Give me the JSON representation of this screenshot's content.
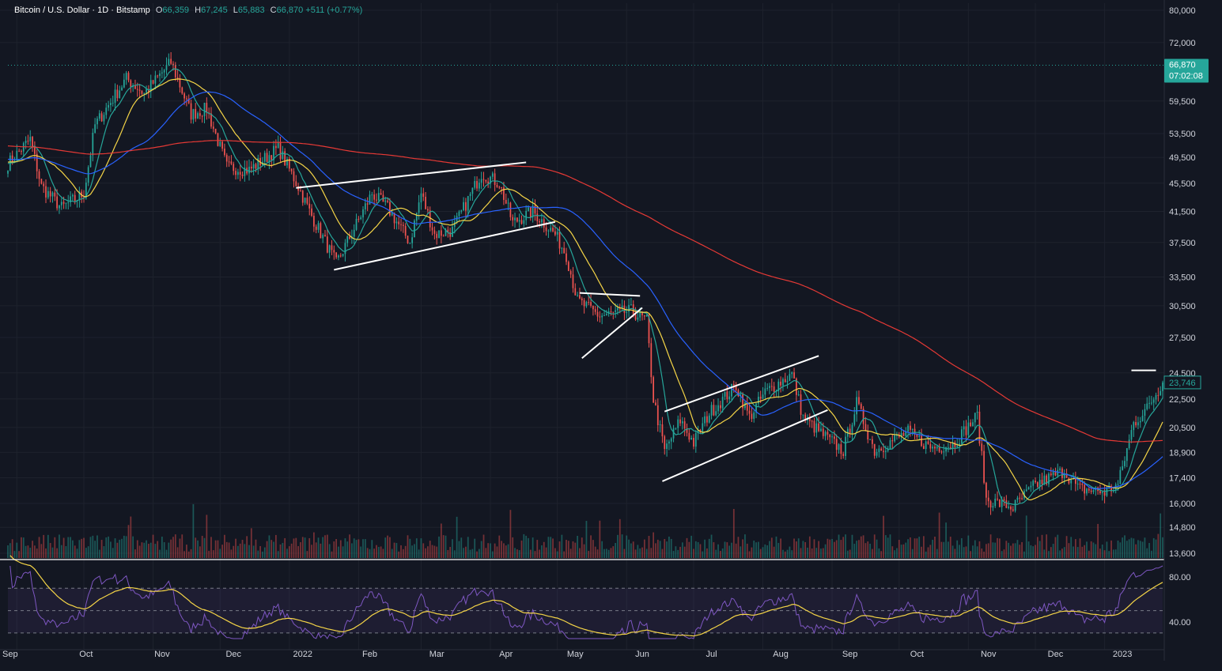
{
  "header": {
    "symbol": "Bitcoin / U.S. Dollar · 1D · Bitstamp",
    "o_label": "O",
    "o": "66,359",
    "h_label": "H",
    "h": "67,245",
    "l_label": "L",
    "l": "65,883",
    "c_label": "C",
    "c": "66,870",
    "change": "+511 (+0.77%)"
  },
  "price_badge": {
    "price": "66,870",
    "countdown": "07:02:08"
  },
  "last_value_tag": "23,746",
  "colors": {
    "background": "#131722",
    "up": "#26a69a",
    "down": "#ef5350",
    "ema_fast": "#26a69a",
    "ema_mid": "#f5d547",
    "ma_blue": "#2962ff",
    "ma_red": "#e53935",
    "rsi": "#7e57c2",
    "rsi_ma": "#f5d547",
    "trendline": "#ffffff",
    "badge": "#26a69a"
  },
  "chart_data": {
    "type": "candlestick",
    "price_ticks": [
      80000,
      72000,
      59500,
      53500,
      49500,
      45500,
      41500,
      37500,
      33500,
      30500,
      27500,
      24500,
      22500,
      20500,
      18900,
      17400,
      16000,
      14800,
      13600
    ],
    "price_tick_labels": [
      "80,000",
      "72,000",
      "59,500",
      "53,500",
      "49,500",
      "45,500",
      "41,500",
      "37,500",
      "33,500",
      "30,500",
      "27,500",
      "24,500",
      "22,500",
      "20,500",
      "18,900",
      "17,400",
      "16,000",
      "14,800",
      "13,600"
    ],
    "price_scale": "log",
    "x_labels": [
      "Sep",
      "Oct",
      "Nov",
      "Dec",
      "2022",
      "Feb",
      "Mar",
      "Apr",
      "May",
      "Jun",
      "Jul",
      "Aug",
      "Sep",
      "Oct",
      "Nov",
      "Dec",
      "2023"
    ],
    "x_range": [
      "2021-08-28",
      "2023-01-27"
    ],
    "price_path": [
      [
        "2021-08-28",
        48500
      ],
      [
        "2021-09-07",
        52500
      ],
      [
        "2021-09-12",
        45000
      ],
      [
        "2021-09-21",
        42000
      ],
      [
        "2021-10-01",
        44000
      ],
      [
        "2021-10-06",
        55000
      ],
      [
        "2021-10-20",
        64000
      ],
      [
        "2021-10-28",
        61000
      ],
      [
        "2021-11-09",
        67500
      ],
      [
        "2021-11-18",
        57000
      ],
      [
        "2021-11-25",
        58000
      ],
      [
        "2021-12-04",
        48000
      ],
      [
        "2021-12-14",
        47500
      ],
      [
        "2021-12-27",
        51000
      ],
      [
        "2022-01-05",
        45000
      ],
      [
        "2022-01-10",
        41500
      ],
      [
        "2022-01-22",
        35000
      ],
      [
        "2022-02-07",
        44000
      ],
      [
        "2022-02-14",
        42000
      ],
      [
        "2022-02-24",
        37500
      ],
      [
        "2022-03-01",
        44000
      ],
      [
        "2022-03-07",
        38500
      ],
      [
        "2022-03-15",
        39000
      ],
      [
        "2022-03-28",
        47000
      ],
      [
        "2022-04-05",
        45500
      ],
      [
        "2022-04-11",
        40000
      ],
      [
        "2022-04-20",
        41500
      ],
      [
        "2022-04-30",
        38500
      ],
      [
        "2022-05-05",
        36000
      ],
      [
        "2022-05-10",
        31000
      ],
      [
        "2022-05-20",
        29500
      ],
      [
        "2022-06-03",
        30000
      ],
      [
        "2022-06-10",
        29000
      ],
      [
        "2022-06-13",
        22500
      ],
      [
        "2022-06-18",
        19000
      ],
      [
        "2022-06-25",
        21000
      ],
      [
        "2022-07-01",
        19500
      ],
      [
        "2022-07-08",
        21500
      ],
      [
        "2022-07-20",
        23500
      ],
      [
        "2022-07-26",
        21200
      ],
      [
        "2022-08-02",
        23000
      ],
      [
        "2022-08-14",
        24400
      ],
      [
        "2022-08-19",
        21200
      ],
      [
        "2022-08-28",
        20000
      ],
      [
        "2022-09-06",
        19000
      ],
      [
        "2022-09-12",
        22200
      ],
      [
        "2022-09-20",
        19000
      ],
      [
        "2022-10-05",
        20200
      ],
      [
        "2022-10-15",
        19200
      ],
      [
        "2022-10-25",
        19400
      ],
      [
        "2022-11-05",
        21300
      ],
      [
        "2022-11-09",
        16200
      ],
      [
        "2022-11-21",
        15800
      ],
      [
        "2022-12-01",
        17000
      ],
      [
        "2022-12-14",
        17800
      ],
      [
        "2022-12-20",
        16800
      ],
      [
        "2023-01-01",
        16600
      ],
      [
        "2023-01-07",
        17000
      ],
      [
        "2023-01-14",
        20800
      ],
      [
        "2023-01-20",
        21800
      ],
      [
        "2023-01-27",
        23746
      ]
    ],
    "moving_averages": [
      {
        "color": "#26a69a",
        "period": 9
      },
      {
        "color": "#f5d547",
        "period": 21
      },
      {
        "color": "#2962ff",
        "period": 50
      },
      {
        "color": "#e53935",
        "period": 200
      }
    ],
    "dotted_price_line": 66870,
    "trendlines": [
      [
        [
          "2022-01-04",
          44800
        ],
        [
          "2022-04-17",
          48700
        ]
      ],
      [
        [
          "2022-01-21",
          34300
        ],
        [
          "2022-04-30",
          40100
        ]
      ],
      [
        [
          "2022-05-11",
          31800
        ],
        [
          "2022-06-07",
          31500
        ]
      ],
      [
        [
          "2022-05-12",
          25700
        ],
        [
          "2022-06-08",
          30300
        ]
      ],
      [
        [
          "2022-06-18",
          21600
        ],
        [
          "2022-08-26",
          25900
        ]
      ],
      [
        [
          "2022-06-17",
          17200
        ],
        [
          "2022-08-30",
          21700
        ]
      ],
      [
        [
          "2023-01-13",
          24700
        ],
        [
          "2023-01-24",
          24700
        ]
      ]
    ],
    "rsi": {
      "levels": [
        70,
        50,
        30
      ],
      "tick_values": [
        80,
        40
      ],
      "tick_labels": [
        "80.00",
        "40.00"
      ],
      "range": [
        25,
        90
      ]
    }
  }
}
